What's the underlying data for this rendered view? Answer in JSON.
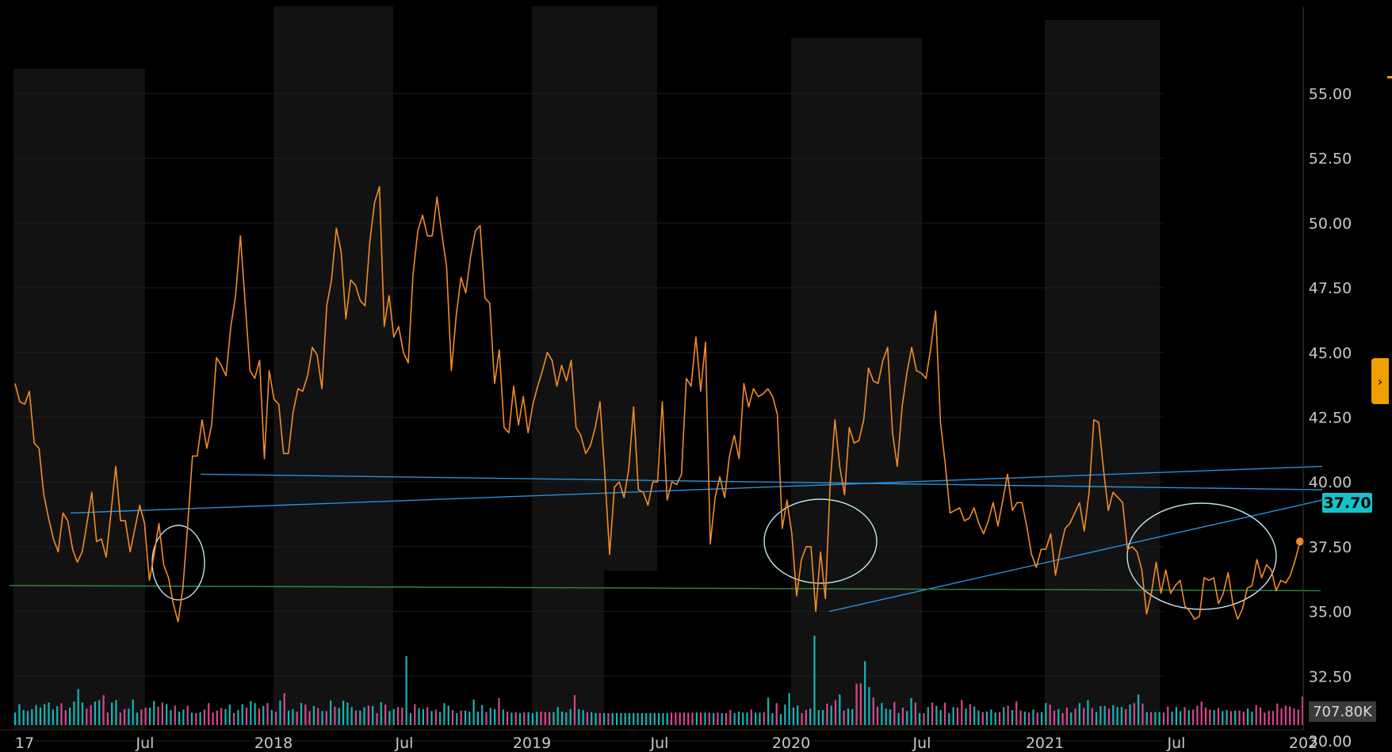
{
  "colors": {
    "background": "#000000",
    "price_line": "#f28c28",
    "trend_line": "#2a8fd8",
    "support_line": "#2e8b3f",
    "circle_annotation": "#bfe6f0",
    "volume_up": "#16b5b8",
    "volume_down": "#d9468e",
    "last_price_badge": "#16c2c9"
  },
  "last_price_label": "37.70",
  "last_volume_label": "707.80K",
  "side_handle_icon": "chevron-right-icon",
  "chart_data": {
    "type": "line",
    "y_ticks": [
      "55.00",
      "52.50",
      "50.00",
      "47.50",
      "45.00",
      "42.50",
      "40.00",
      "37.50",
      "35.00",
      "32.50",
      "30.00"
    ],
    "x_ticks": [
      "17",
      "Jul",
      "2018",
      "Jul",
      "2019",
      "Jul",
      "2020",
      "Jul",
      "2021",
      "Jul",
      "202"
    ],
    "ylim": [
      29.5,
      56.5
    ],
    "y_axis_position": "right",
    "grid": true,
    "series": [
      {
        "values": [
          43.8,
          43.1,
          43.0,
          43.5,
          41.5,
          41.3,
          39.5,
          38.6,
          37.8,
          37.3,
          38.8,
          38.5,
          37.4,
          36.9,
          37.3,
          38.4,
          39.6,
          37.7,
          37.8,
          37.1,
          38.8,
          40.6,
          38.5,
          38.5,
          37.3,
          38.2,
          39.1,
          38.4,
          36.2,
          37.2,
          38.4,
          36.8,
          36.3,
          35.3,
          34.6,
          35.9,
          38.3,
          41.0,
          41.0,
          42.4,
          41.3,
          42.2,
          44.8,
          44.5,
          44.1,
          46.0,
          47.2,
          49.5,
          46.9,
          44.3,
          44.0,
          44.7,
          40.9,
          44.3,
          43.2,
          43.0,
          41.1,
          41.1,
          42.7,
          43.6,
          43.5,
          44.1,
          45.2,
          44.9,
          43.6,
          46.8,
          47.8,
          49.8,
          48.9,
          46.3,
          47.8,
          47.6,
          47.0,
          46.8,
          49.3,
          50.8,
          51.4,
          46.0,
          47.2,
          45.6,
          46.0,
          45.0,
          44.6,
          48.0,
          49.7,
          50.3,
          49.5,
          49.5,
          51.0,
          49.6,
          48.3,
          44.3,
          46.4,
          47.9,
          47.3,
          48.7,
          49.7,
          49.9,
          47.1,
          46.9,
          43.8,
          45.1,
          42.1,
          41.9,
          43.7,
          42.2,
          43.3,
          41.9,
          43.0,
          43.7,
          44.3,
          45.0,
          44.7,
          43.7,
          44.5,
          43.9,
          44.7,
          42.1,
          41.8,
          41.1,
          41.4,
          42.1,
          43.1,
          40.3,
          37.2,
          39.8,
          40.0,
          39.4,
          40.5,
          42.9,
          39.7,
          39.6,
          39.1,
          40.0,
          40.0,
          43.1,
          39.3,
          40.0,
          39.9,
          40.3,
          44.0,
          43.7,
          45.6,
          43.5,
          45.4,
          37.6,
          39.4,
          40.2,
          39.4,
          41.0,
          41.8,
          40.9,
          43.8,
          42.9,
          43.6,
          43.3,
          43.4,
          43.6,
          43.3,
          42.6,
          38.2,
          39.3,
          38.0,
          35.6,
          37.0,
          37.5,
          37.5,
          35.0,
          37.3,
          35.5,
          39.9,
          42.4,
          40.6,
          39.5,
          42.1,
          41.5,
          41.6,
          42.4,
          44.4,
          43.9,
          43.8,
          44.7,
          45.2,
          41.9,
          40.6,
          42.9,
          44.2,
          45.2,
          44.3,
          44.2,
          44.0,
          45.2,
          46.6,
          42.3,
          40.7,
          38.8,
          38.9,
          39.0,
          38.5,
          38.6,
          39.0,
          38.4,
          38.0,
          38.5,
          39.2,
          38.3,
          39.3,
          40.3,
          38.9,
          39.2,
          39.2,
          38.3,
          37.2,
          36.7,
          37.4,
          37.4,
          38.0,
          36.4,
          37.4,
          38.2,
          38.4,
          38.8,
          39.2,
          38.1,
          39.6,
          42.4,
          42.3,
          40.5,
          38.9,
          39.6,
          39.4,
          39.2,
          37.4,
          37.5,
          37.3,
          36.6,
          34.9,
          35.7,
          36.9,
          35.7,
          36.6,
          35.7,
          36.0,
          36.2,
          35.2,
          35.0,
          34.7,
          34.8,
          36.3,
          36.2,
          36.3,
          35.3,
          35.7,
          36.5,
          35.3,
          34.7,
          35.1,
          35.9,
          36.0,
          37.0,
          36.3,
          36.8,
          36.6,
          35.8,
          36.2,
          36.1,
          36.4,
          37.0,
          37.7
        ]
      }
    ],
    "volume": {
      "values": [
        0.25,
        0.42,
        0.3,
        0.28,
        0.32,
        0.4,
        0.35,
        0.42,
        0.45,
        0.31,
        0.38,
        0.44,
        0.3,
        0.35,
        0.47,
        0.72,
        0.45,
        0.33,
        0.4,
        0.47,
        0.5,
        0.6,
        0.25,
        0.45,
        0.5,
        0.25,
        0.32,
        0.33,
        0.51,
        0.25,
        0.31,
        0.35,
        0.35,
        0.48,
        0.37,
        0.45,
        0.42,
        0.3,
        0.39,
        0.27,
        0.31,
        0.39,
        0.25,
        0.24,
        0.26,
        0.31,
        0.44,
        0.25,
        0.29,
        0.34,
        0.32,
        0.41,
        0.24,
        0.3,
        0.42,
        0.35,
        0.48,
        0.44,
        0.33,
        0.38,
        0.44,
        0.3,
        0.27,
        0.49,
        0.64,
        0.29,
        0.32,
        0.27,
        0.44,
        0.41,
        0.28,
        0.38,
        0.34,
        0.28,
        0.28,
        0.49,
        0.37,
        0.34,
        0.49,
        0.45,
        0.36,
        0.29,
        0.29,
        0.36,
        0.39,
        0.38,
        0.24,
        0.46,
        0.41,
        0.28,
        0.32,
        0.36,
        0.35,
        1.38,
        0.24,
        0.42,
        0.34,
        0.32,
        0.36,
        0.28,
        0.31,
        0.26,
        0.44,
        0.39,
        0.3,
        0.24,
        0.29,
        0.29,
        0.27,
        0.51,
        0.27,
        0.4,
        0.26,
        0.34,
        0.32,
        0.54,
        0.31,
        0.27,
        0.25,
        0.26,
        0.24,
        0.26,
        0.26,
        0.24,
        0.26,
        0.27,
        0.26,
        0.26,
        0.26,
        0.36,
        0.27,
        0.25,
        0.32,
        0.6,
        0.32,
        0.3,
        0.26,
        0.26,
        0.24,
        0.24,
        0.24,
        0.24,
        0.24,
        0.24,
        0.24,
        0.24,
        0.24,
        0.24,
        0.24,
        0.24,
        0.24,
        0.24,
        0.24,
        0.24,
        0.24,
        0.24,
        0.25,
        0.25,
        0.25,
        0.25,
        0.25,
        0.25,
        0.25,
        0.25,
        0.25,
        0.25,
        0.24,
        0.25,
        0.24,
        0.24,
        0.3,
        0.24,
        0.27,
        0.25,
        0.25,
        0.31,
        0.25,
        0.25,
        0.26,
        0.55,
        0.24,
        0.44,
        0.22,
        0.41,
        0.64,
        0.35,
        0.39,
        0.24,
        0.3,
        0.33,
        1.79,
        0.3,
        0.3,
        0.43,
        0.39,
        0.5,
        0.61,
        0.29,
        0.33,
        0.32,
        0.83,
        0.84,
        1.28,
        0.76,
        0.55,
        0.37,
        0.44,
        0.33,
        0.31,
        0.46,
        0.24,
        0.35,
        0.28,
        0.54,
        0.45,
        0.24,
        0.24,
        0.36,
        0.45,
        0.38,
        0.3,
        0.45,
        0.24,
        0.36,
        0.35,
        0.5,
        0.33,
        0.42,
        0.37,
        0.29,
        0.26,
        0.27,
        0.31,
        0.25,
        0.26,
        0.36,
        0.39,
        0.3,
        0.47,
        0.29,
        0.27,
        0.25,
        0.31,
        0.25,
        0.26,
        0.44,
        0.41,
        0.29,
        0.32,
        0.24,
        0.35,
        0.25,
        0.33,
        0.44,
        0.34,
        0.5,
        0.34,
        0.26,
        0.38,
        0.38,
        0.33,
        0.4,
        0.36,
        0.36,
        0.32,
        0.41,
        0.44,
        0.61,
        0.43,
        0.26,
        0.26,
        0.26,
        0.26,
        0.25,
        0.37,
        0.27,
        0.36,
        0.28,
        0.36,
        0.3,
        0.31,
        0.39,
        0.47,
        0.35,
        0.31,
        0.3,
        0.34,
        0.28,
        0.3,
        0.28,
        0.29,
        0.29,
        0.27,
        0.33,
        0.27,
        0.4,
        0.35,
        0.25,
        0.29,
        0.28,
        0.43,
        0.33,
        0.39,
        0.37,
        0.33,
        0.31,
        0.57
      ],
      "up": [
        true,
        true,
        true,
        true,
        true,
        true,
        true,
        true,
        true,
        true,
        true,
        false,
        false,
        true,
        true,
        true,
        true,
        false,
        false,
        true,
        true,
        false,
        false,
        true,
        true,
        false,
        false,
        true,
        true,
        true,
        false,
        false,
        true,
        true,
        false,
        false,
        true,
        true,
        false,
        true,
        true,
        false,
        true,
        false,
        true,
        false,
        false,
        false,
        false,
        false,
        true,
        true,
        false,
        true,
        true,
        false,
        true,
        true,
        false,
        true,
        false,
        true,
        false,
        true,
        false,
        true,
        true,
        false,
        true,
        false,
        false,
        true,
        false,
        true,
        false,
        true,
        false,
        true,
        true,
        true,
        true,
        false,
        true,
        true,
        false,
        true,
        false,
        true,
        false,
        true,
        true,
        false,
        false,
        true,
        true,
        false,
        true,
        true,
        false,
        true,
        false,
        true,
        true,
        true,
        false,
        true,
        false,
        true,
        true,
        true,
        true,
        true,
        false,
        true,
        true,
        false,
        true,
        false,
        true,
        false,
        true,
        false,
        true,
        true,
        true,
        false,
        false,
        false,
        true,
        true,
        true,
        true,
        true,
        false,
        true,
        true,
        false,
        true,
        true,
        false,
        true,
        false,
        true,
        true,
        true,
        true,
        true,
        true,
        true,
        true,
        true,
        true,
        true,
        true,
        true,
        true,
        false,
        false,
        false,
        false,
        false,
        false,
        true,
        false,
        true,
        false,
        true,
        false,
        true,
        false,
        false,
        true,
        true,
        true,
        true,
        false,
        true,
        true,
        false,
        true,
        true,
        false,
        true,
        true,
        true,
        true,
        true,
        false,
        false,
        true,
        true,
        true,
        true,
        false,
        true,
        false,
        true,
        false,
        true,
        true,
        false,
        false,
        true,
        true,
        false,
        false,
        true,
        true,
        true,
        false,
        true,
        false,
        true,
        true,
        false,
        true,
        false,
        true,
        false,
        true,
        true,
        false,
        true,
        true,
        false,
        false,
        true,
        false,
        true,
        true,
        false,
        true,
        true,
        true,
        false,
        true,
        false,
        true,
        false,
        false,
        true,
        false,
        true,
        false,
        true,
        true,
        false,
        false,
        true,
        false,
        false,
        true,
        false,
        true,
        false,
        true,
        false,
        true,
        true,
        true,
        false,
        true,
        true,
        true,
        false,
        true,
        false,
        true,
        false,
        true,
        false,
        true,
        true,
        false,
        false,
        true,
        true,
        true,
        false,
        true,
        false,
        false,
        false,
        false,
        false,
        true,
        false,
        true,
        true,
        false,
        true,
        false,
        false,
        true,
        true,
        false
      ]
    },
    "annotations": {
      "trend_lines": [
        {
          "from": [
            "2017-10",
            40.3
          ],
          "to": [
            "2022-01",
            39.7
          ]
        },
        {
          "from": [
            "2017-04",
            38.8
          ],
          "to": [
            "2022-01",
            40.6
          ]
        },
        {
          "from": [
            "2020-03",
            35.0
          ],
          "to": [
            "2022-01",
            39.3
          ]
        }
      ],
      "support_line": {
        "from": [
          "2017-01",
          36.0
        ],
        "to": [
          "2022-01",
          35.8
        ]
      },
      "circled_lows": [
        "2017-08",
        "2020-03",
        "2021-08"
      ]
    }
  }
}
